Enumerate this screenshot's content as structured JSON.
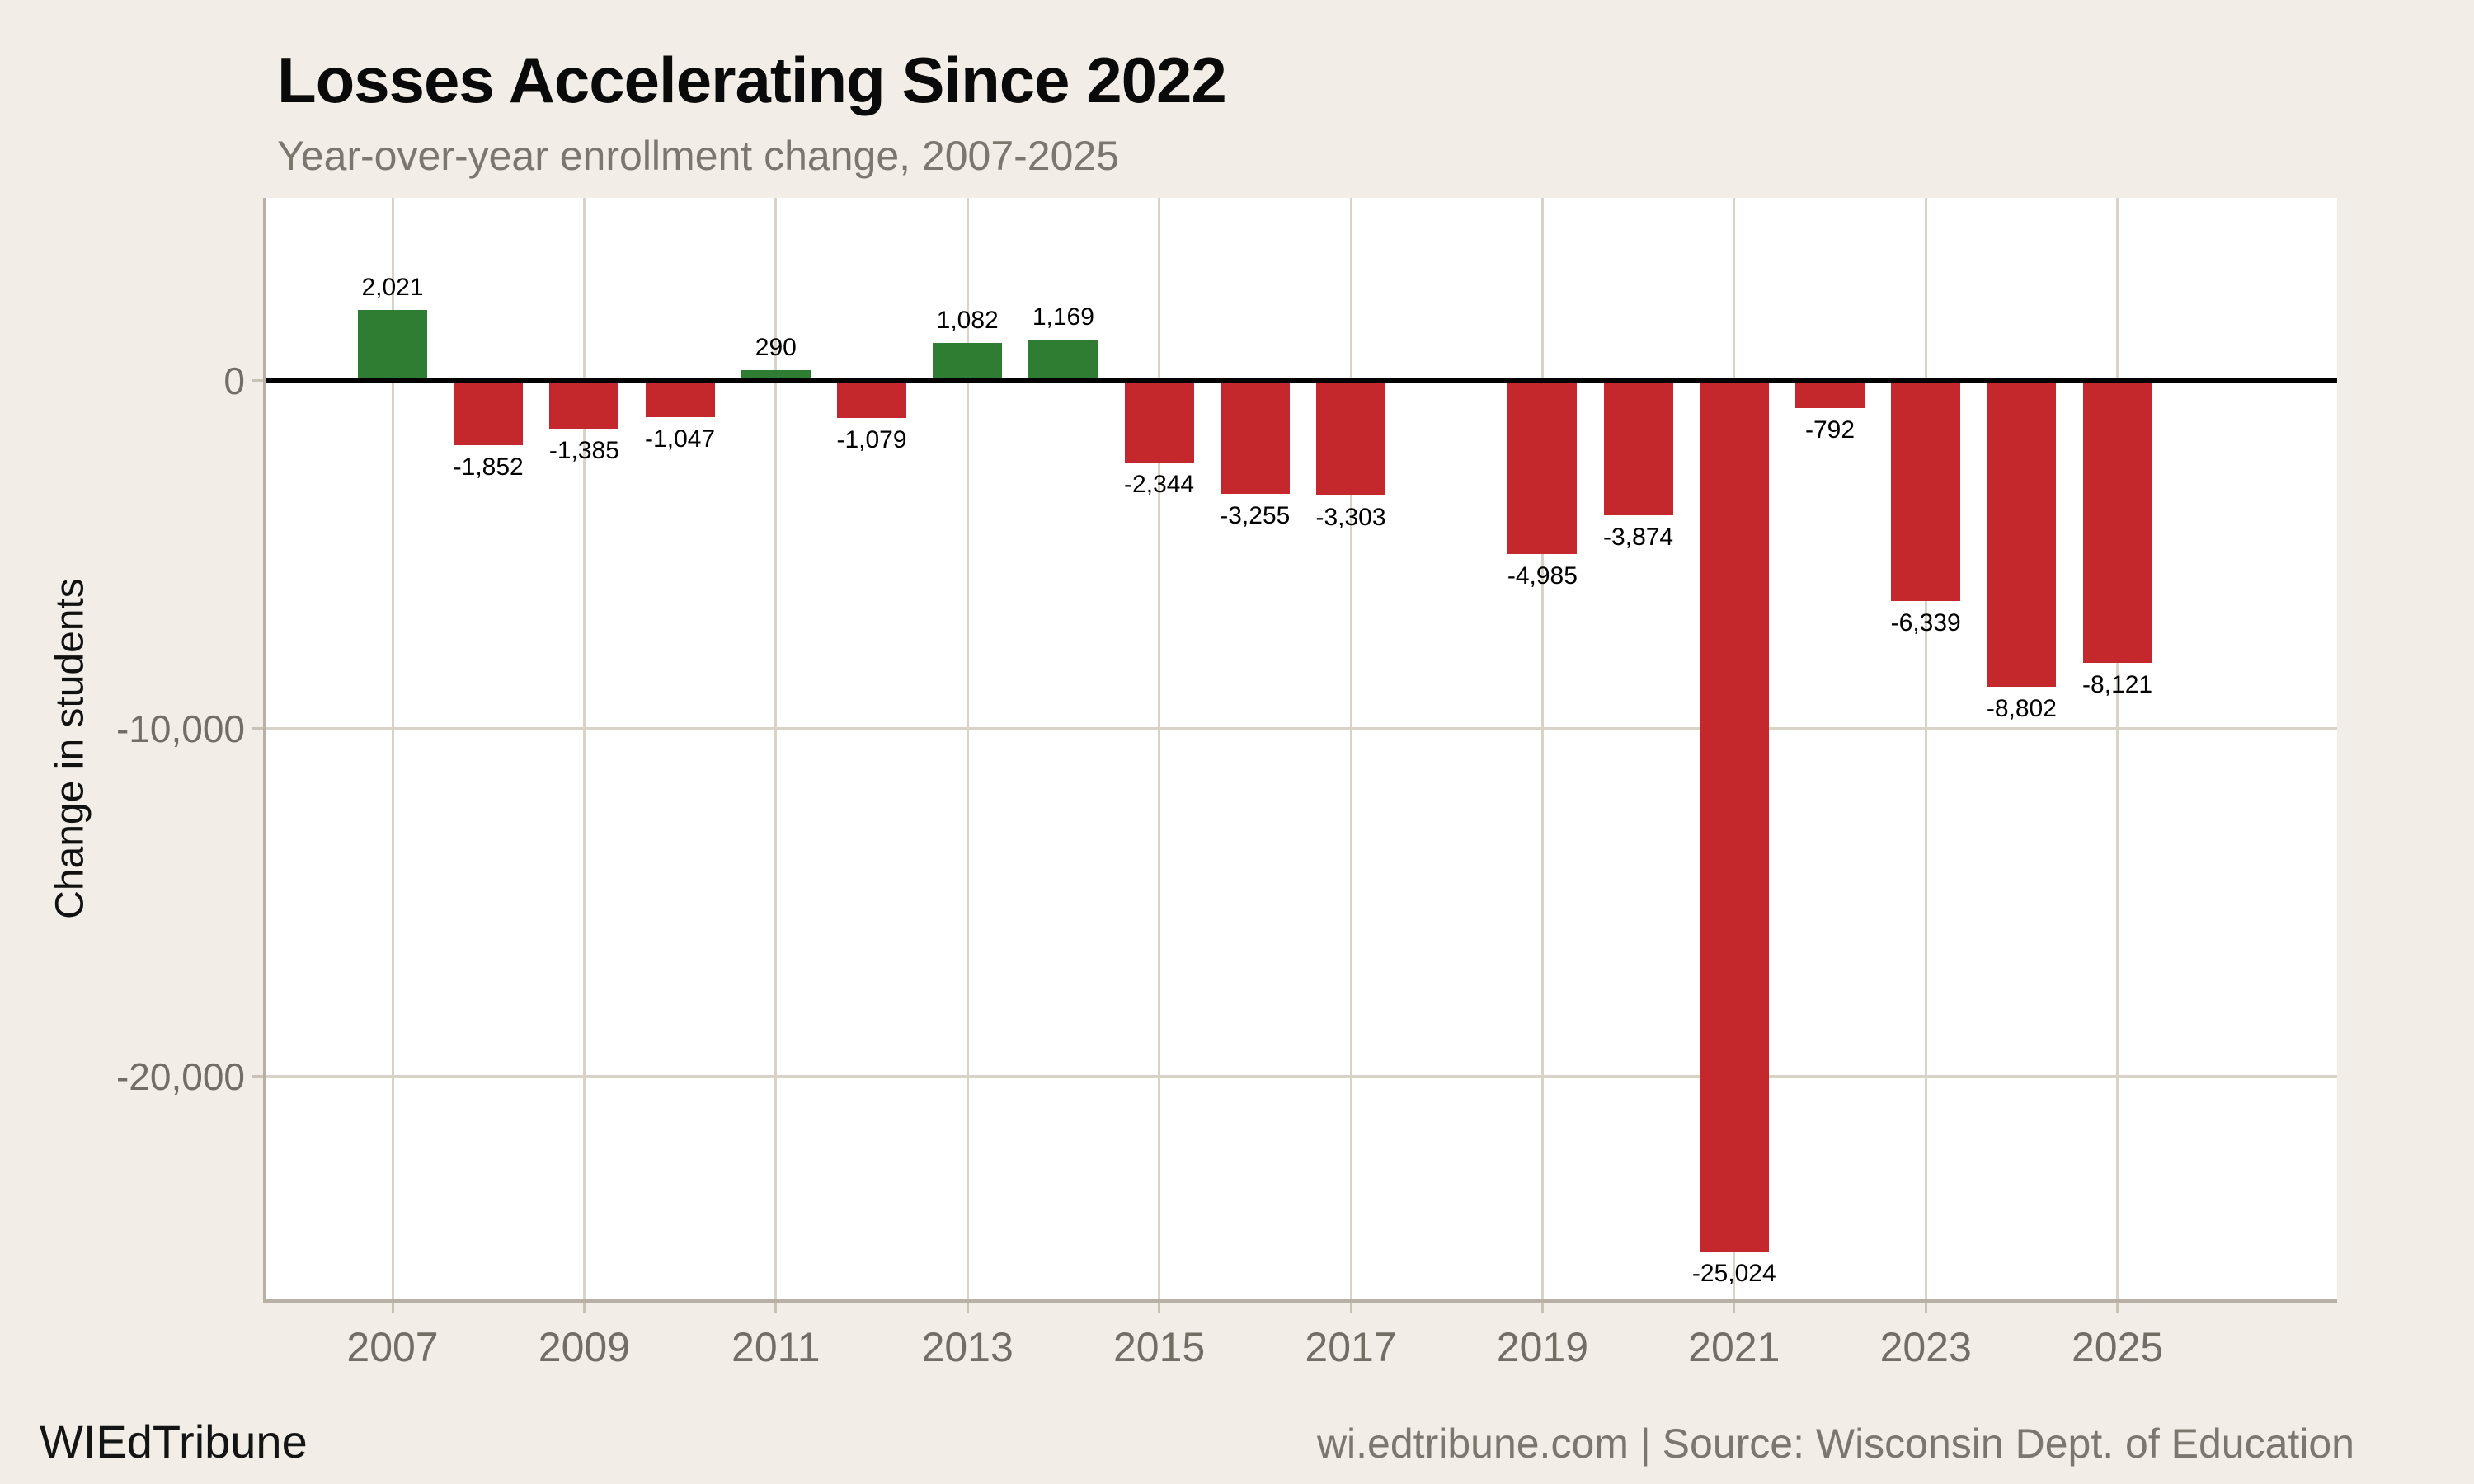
{
  "page": {
    "background": "#f2eee7"
  },
  "header": {
    "title": "Losses Accelerating Since 2022",
    "subtitle": "Year-over-year enrollment change, 2007-2025"
  },
  "footer": {
    "brand": "WIEdTribune",
    "credit": "wi.edtribune.com | Source: Wisconsin Dept. of Education"
  },
  "chart_data": {
    "type": "bar",
    "title": "Losses Accelerating Since 2022",
    "subtitle": "Year-over-year enrollment change, 2007-2025",
    "xlabel": "",
    "ylabel": "Change in students",
    "categories": [
      2007,
      2008,
      2009,
      2010,
      2011,
      2012,
      2013,
      2014,
      2015,
      2016,
      2017,
      2018,
      2019,
      2020,
      2021,
      2022,
      2023,
      2024,
      2025
    ],
    "values": [
      2021,
      -1852,
      -1385,
      -1047,
      290,
      -1079,
      1082,
      1169,
      -2344,
      -3255,
      -3303,
      null,
      -4985,
      -3874,
      -25024,
      -792,
      -6339,
      -8802,
      -8121
    ],
    "value_labels": [
      "2,021",
      "-1,852",
      "-1,385",
      "-1,047",
      "290",
      "-1,079",
      "1,082",
      "1,169",
      "-2,344",
      "-3,255",
      "-3,303",
      null,
      "-4,985",
      "-3,874",
      "-25,024",
      "-792",
      "-6,339",
      "-8,802",
      "-8,121"
    ],
    "x_ticks": [
      2007,
      2009,
      2011,
      2013,
      2015,
      2017,
      2019,
      2021,
      2023,
      2025
    ],
    "y_ticks": [
      {
        "value": 0,
        "label": "0"
      },
      {
        "value": -10000,
        "label": "-10,000"
      },
      {
        "value": -20000,
        "label": "-20,000"
      }
    ],
    "ylim": [
      5250,
      -26400
    ],
    "grid": true,
    "legend": false,
    "colors": {
      "positive": "#2e7d32",
      "negative": "#c5282c",
      "grid": "#d9d3c7",
      "spine": "#b7b1a5",
      "zero_line": "#000000",
      "tick_text": "#726d65",
      "panel": "#ffffff"
    }
  }
}
